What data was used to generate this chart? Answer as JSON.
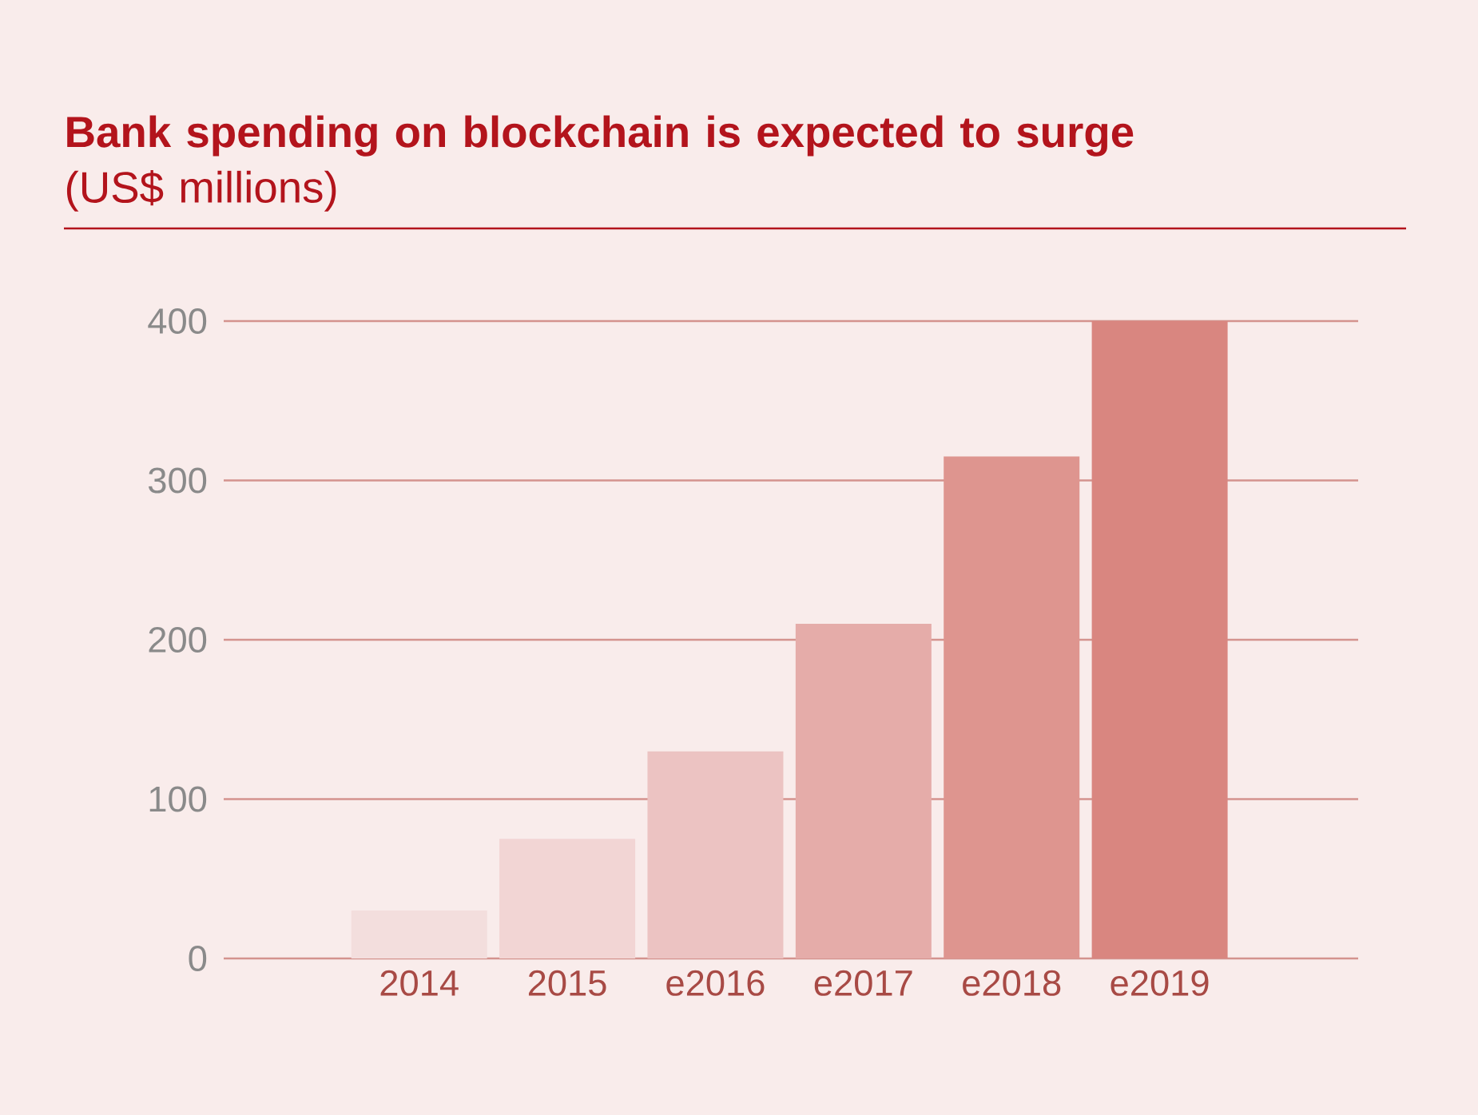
{
  "chart_data": {
    "type": "bar",
    "title": "**Bank spending on blockchain is expected to surge** (US$ millions)",
    "categories": [
      "2014",
      "2015",
      "e2016",
      "e2017",
      "e2018",
      "e2019"
    ],
    "values": [
      30,
      75,
      130,
      210,
      315,
      400
    ],
    "colors": [
      "#f3dedd",
      "#f2d5d4",
      "#ecc3c2",
      "#e5aca9",
      "#de958f",
      "#d98680"
    ],
    "ylim": [
      0,
      400
    ],
    "yticks": [
      0,
      100,
      200,
      300,
      400
    ],
    "grid": "y"
  }
}
